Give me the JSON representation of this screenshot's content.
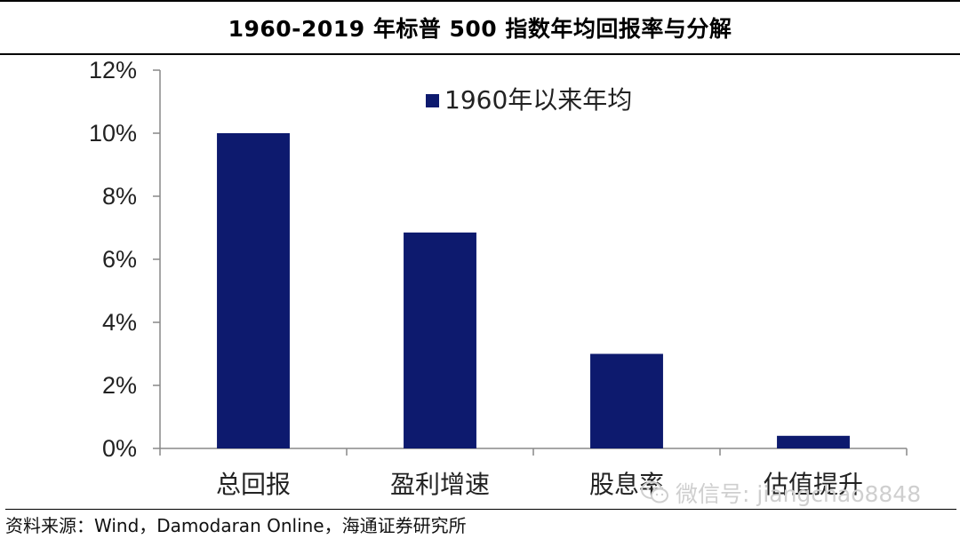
{
  "chart_data": {
    "type": "bar",
    "title": "1960-2019 年标普 500 指数年均回报率与分解",
    "categories": [
      "总回报",
      "盈利增速",
      "股息率",
      "估值提升"
    ],
    "series": [
      {
        "name": "1960年以来年均",
        "values": [
          10.0,
          6.85,
          3.0,
          0.4
        ],
        "color": "#0d1a6e"
      }
    ],
    "y_ticks": [
      "0%",
      "2%",
      "4%",
      "6%",
      "8%",
      "10%",
      "12%"
    ],
    "ylim": [
      0,
      12
    ],
    "y_unit": "%",
    "grid": false,
    "legend_position": "top-center"
  },
  "source": {
    "text": "资料来源：Wind，Damodaran Online，海通证券研究所"
  },
  "watermark": {
    "text": "微信号: jiangchao8848",
    "icon": "wechat-icon"
  }
}
